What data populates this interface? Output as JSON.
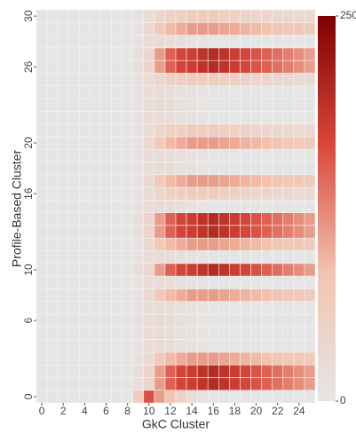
{
  "chart_data": {
    "type": "heatmap",
    "x_label": "GkC Cluster",
    "y_label": "Profile-Based Cluster",
    "x": [
      0,
      1,
      2,
      3,
      4,
      5,
      6,
      7,
      8,
      9,
      10,
      11,
      12,
      13,
      14,
      15,
      16,
      17,
      18,
      19,
      20,
      21,
      22,
      23,
      24,
      25
    ],
    "y": [
      0,
      1,
      2,
      3,
      4,
      5,
      6,
      7,
      8,
      9,
      10,
      11,
      12,
      13,
      14,
      15,
      16,
      17,
      18,
      19,
      20,
      21,
      22,
      23,
      24,
      25,
      26,
      27,
      28,
      29,
      30
    ],
    "z": [
      [
        0,
        0,
        0,
        0,
        0,
        0,
        0,
        0,
        0,
        60,
        160,
        110,
        80,
        50,
        25,
        10,
        0,
        0,
        0,
        0,
        0,
        0,
        0,
        0,
        0,
        0
      ],
      [
        0,
        0,
        0,
        0,
        0,
        0,
        0,
        0,
        0,
        15,
        40,
        110,
        150,
        170,
        180,
        190,
        200,
        190,
        180,
        170,
        160,
        150,
        140,
        130,
        120,
        110
      ],
      [
        0,
        0,
        0,
        0,
        0,
        0,
        0,
        0,
        0,
        15,
        40,
        110,
        150,
        170,
        180,
        190,
        200,
        190,
        180,
        170,
        160,
        150,
        140,
        130,
        120,
        110
      ],
      [
        0,
        0,
        0,
        0,
        0,
        0,
        0,
        0,
        0,
        10,
        30,
        70,
        90,
        100,
        110,
        110,
        110,
        105,
        100,
        95,
        90,
        85,
        80,
        75,
        70,
        65
      ],
      [
        0,
        0,
        0,
        0,
        0,
        0,
        0,
        0,
        0,
        10,
        25,
        25,
        20,
        15,
        10,
        5,
        0,
        0,
        0,
        0,
        0,
        0,
        0,
        0,
        0,
        0
      ],
      [
        0,
        0,
        0,
        0,
        0,
        0,
        0,
        0,
        0,
        10,
        25,
        25,
        20,
        15,
        10,
        5,
        0,
        0,
        0,
        0,
        0,
        0,
        0,
        0,
        0,
        0
      ],
      [
        0,
        0,
        0,
        0,
        0,
        0,
        0,
        0,
        0,
        10,
        25,
        25,
        20,
        15,
        10,
        5,
        0,
        0,
        0,
        0,
        0,
        0,
        0,
        0,
        0,
        0
      ],
      [
        0,
        0,
        0,
        0,
        0,
        0,
        0,
        0,
        0,
        10,
        25,
        25,
        20,
        15,
        10,
        5,
        0,
        0,
        0,
        0,
        0,
        0,
        0,
        0,
        0,
        0
      ],
      [
        0,
        0,
        0,
        0,
        0,
        0,
        0,
        0,
        0,
        10,
        30,
        70,
        90,
        100,
        110,
        110,
        110,
        105,
        100,
        95,
        90,
        85,
        80,
        75,
        70,
        65
      ],
      [
        0,
        0,
        0,
        0,
        0,
        0,
        0,
        0,
        0,
        10,
        25,
        25,
        20,
        15,
        10,
        5,
        0,
        0,
        0,
        0,
        0,
        0,
        0,
        0,
        0,
        0
      ],
      [
        0,
        0,
        0,
        0,
        0,
        0,
        0,
        0,
        0,
        15,
        40,
        110,
        150,
        170,
        180,
        190,
        200,
        190,
        180,
        170,
        160,
        150,
        140,
        130,
        120,
        110
      ],
      [
        0,
        0,
        0,
        0,
        0,
        0,
        0,
        0,
        0,
        10,
        25,
        25,
        20,
        15,
        10,
        5,
        0,
        0,
        0,
        0,
        0,
        0,
        0,
        0,
        0,
        0
      ],
      [
        0,
        0,
        0,
        0,
        0,
        0,
        0,
        0,
        0,
        10,
        30,
        70,
        90,
        100,
        110,
        110,
        110,
        105,
        100,
        95,
        90,
        85,
        80,
        75,
        70,
        65
      ],
      [
        0,
        0,
        0,
        0,
        0,
        0,
        0,
        0,
        0,
        15,
        40,
        110,
        150,
        170,
        180,
        190,
        200,
        190,
        180,
        170,
        160,
        150,
        140,
        130,
        120,
        110
      ],
      [
        0,
        0,
        0,
        0,
        0,
        0,
        0,
        0,
        0,
        15,
        40,
        110,
        150,
        170,
        180,
        190,
        200,
        190,
        180,
        170,
        160,
        150,
        140,
        130,
        120,
        110
      ],
      [
        0,
        0,
        0,
        0,
        0,
        0,
        0,
        0,
        0,
        10,
        25,
        25,
        20,
        15,
        10,
        5,
        0,
        0,
        0,
        0,
        0,
        0,
        0,
        0,
        0,
        0
      ],
      [
        0,
        0,
        0,
        0,
        0,
        0,
        0,
        0,
        0,
        10,
        25,
        40,
        50,
        55,
        60,
        60,
        60,
        55,
        50,
        45,
        40,
        40,
        35,
        35,
        30,
        30
      ],
      [
        0,
        0,
        0,
        0,
        0,
        0,
        0,
        0,
        0,
        10,
        30,
        70,
        90,
        100,
        110,
        110,
        110,
        105,
        100,
        95,
        90,
        85,
        80,
        75,
        70,
        65
      ],
      [
        0,
        0,
        0,
        0,
        0,
        0,
        0,
        0,
        0,
        10,
        25,
        25,
        20,
        15,
        10,
        5,
        0,
        0,
        0,
        0,
        0,
        0,
        0,
        0,
        0,
        0
      ],
      [
        0,
        0,
        0,
        0,
        0,
        0,
        0,
        0,
        0,
        10,
        25,
        25,
        20,
        15,
        10,
        5,
        0,
        0,
        0,
        0,
        0,
        0,
        0,
        0,
        0,
        0
      ],
      [
        0,
        0,
        0,
        0,
        0,
        0,
        0,
        0,
        0,
        10,
        30,
        70,
        90,
        100,
        110,
        110,
        110,
        105,
        100,
        95,
        90,
        85,
        80,
        75,
        70,
        65
      ],
      [
        0,
        0,
        0,
        0,
        0,
        0,
        0,
        0,
        0,
        10,
        25,
        40,
        50,
        55,
        60,
        60,
        60,
        55,
        50,
        45,
        40,
        40,
        35,
        35,
        30,
        30
      ],
      [
        0,
        0,
        0,
        0,
        0,
        0,
        0,
        0,
        0,
        10,
        25,
        25,
        20,
        15,
        10,
        5,
        0,
        0,
        0,
        0,
        0,
        0,
        0,
        0,
        0,
        0
      ],
      [
        0,
        0,
        0,
        0,
        0,
        0,
        0,
        0,
        0,
        10,
        25,
        25,
        20,
        15,
        10,
        5,
        0,
        0,
        0,
        0,
        0,
        0,
        0,
        0,
        0,
        0
      ],
      [
        0,
        0,
        0,
        0,
        0,
        0,
        0,
        0,
        0,
        10,
        25,
        25,
        20,
        15,
        10,
        5,
        0,
        0,
        0,
        0,
        0,
        0,
        0,
        0,
        0,
        0
      ],
      [
        0,
        0,
        0,
        0,
        0,
        0,
        0,
        0,
        0,
        10,
        25,
        40,
        50,
        55,
        60,
        60,
        60,
        55,
        50,
        45,
        40,
        40,
        35,
        35,
        30,
        30
      ],
      [
        0,
        0,
        0,
        0,
        0,
        0,
        0,
        0,
        0,
        15,
        40,
        110,
        150,
        170,
        180,
        190,
        200,
        190,
        180,
        170,
        160,
        150,
        140,
        130,
        120,
        110
      ],
      [
        0,
        0,
        0,
        0,
        0,
        0,
        0,
        0,
        0,
        15,
        40,
        110,
        150,
        170,
        180,
        190,
        200,
        190,
        180,
        170,
        160,
        150,
        140,
        130,
        120,
        110
      ],
      [
        0,
        0,
        0,
        0,
        0,
        0,
        0,
        0,
        0,
        10,
        25,
        25,
        20,
        15,
        10,
        5,
        0,
        0,
        0,
        0,
        0,
        0,
        0,
        0,
        0,
        0
      ],
      [
        0,
        0,
        0,
        0,
        0,
        0,
        0,
        0,
        0,
        10,
        30,
        70,
        90,
        100,
        110,
        110,
        110,
        105,
        100,
        95,
        90,
        85,
        80,
        75,
        70,
        65
      ],
      [
        0,
        0,
        0,
        0,
        0,
        0,
        0,
        0,
        0,
        10,
        25,
        40,
        50,
        55,
        60,
        60,
        60,
        55,
        50,
        45,
        40,
        40,
        35,
        35,
        30,
        30
      ]
    ],
    "xlim": [
      -0.5,
      25.5
    ],
    "ylim": [
      -0.5,
      30.5
    ],
    "xticks": [
      0,
      2,
      4,
      6,
      8,
      10,
      12,
      14,
      16,
      18,
      20,
      22,
      24
    ],
    "yticks": [
      0,
      6,
      10,
      16,
      20,
      26,
      30
    ],
    "zlim": [
      0,
      250
    ],
    "zticks": [
      0,
      250
    ],
    "colorscale": [
      "#e5e5e5",
      "#f2c4b0",
      "#d9473a",
      "#7f0000"
    ]
  }
}
